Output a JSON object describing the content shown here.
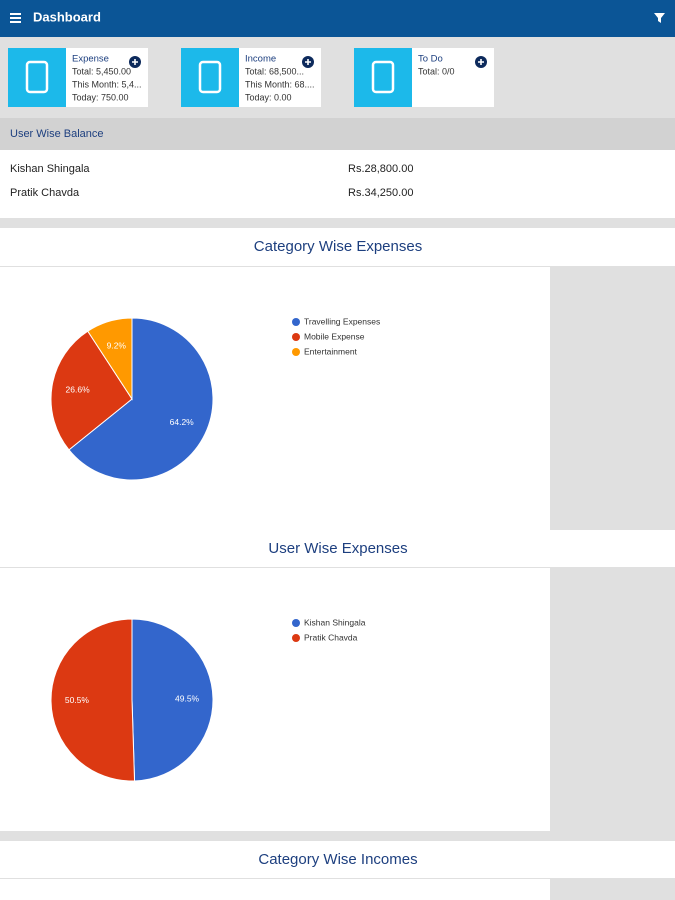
{
  "header": {
    "title": "Dashboard"
  },
  "cards": [
    {
      "title": "Expense",
      "lines": [
        "Total: 5,450.00",
        "This Month: 5,4...",
        "Today: 750.00"
      ]
    },
    {
      "title": "Income",
      "lines": [
        "Total: 68,500...",
        "This Month: 68....",
        "Today: 0.00"
      ]
    },
    {
      "title": "To Do",
      "lines": [
        "Total: 0/0"
      ]
    }
  ],
  "balance": {
    "title": "User Wise Balance",
    "rows": [
      [
        "Kishan Shingala",
        "Rs.28,800.00"
      ],
      [
        "Pratik Chavda",
        "Rs.34,250.00"
      ]
    ]
  },
  "chart_data": [
    {
      "type": "pie",
      "title": "Category Wise Expenses",
      "categories": [
        "Travelling Expenses",
        "Mobile Expense",
        "Entertainment"
      ],
      "values": [
        64.2,
        26.6,
        9.2
      ],
      "value_labels": [
        "64.2%",
        "26.6%",
        "9.2%"
      ],
      "colors": [
        "#3366cc",
        "#dc3912",
        "#ff9900"
      ]
    },
    {
      "type": "pie",
      "title": "User Wise Expenses",
      "categories": [
        "Kishan Shingala",
        "Pratik Chavda"
      ],
      "values": [
        49.5,
        50.5
      ],
      "value_labels": [
        "49.5%",
        "50.5%"
      ],
      "colors": [
        "#3366cc",
        "#dc3912"
      ]
    }
  ],
  "sections": [
    {
      "title": "Category Wise Incomes"
    }
  ]
}
